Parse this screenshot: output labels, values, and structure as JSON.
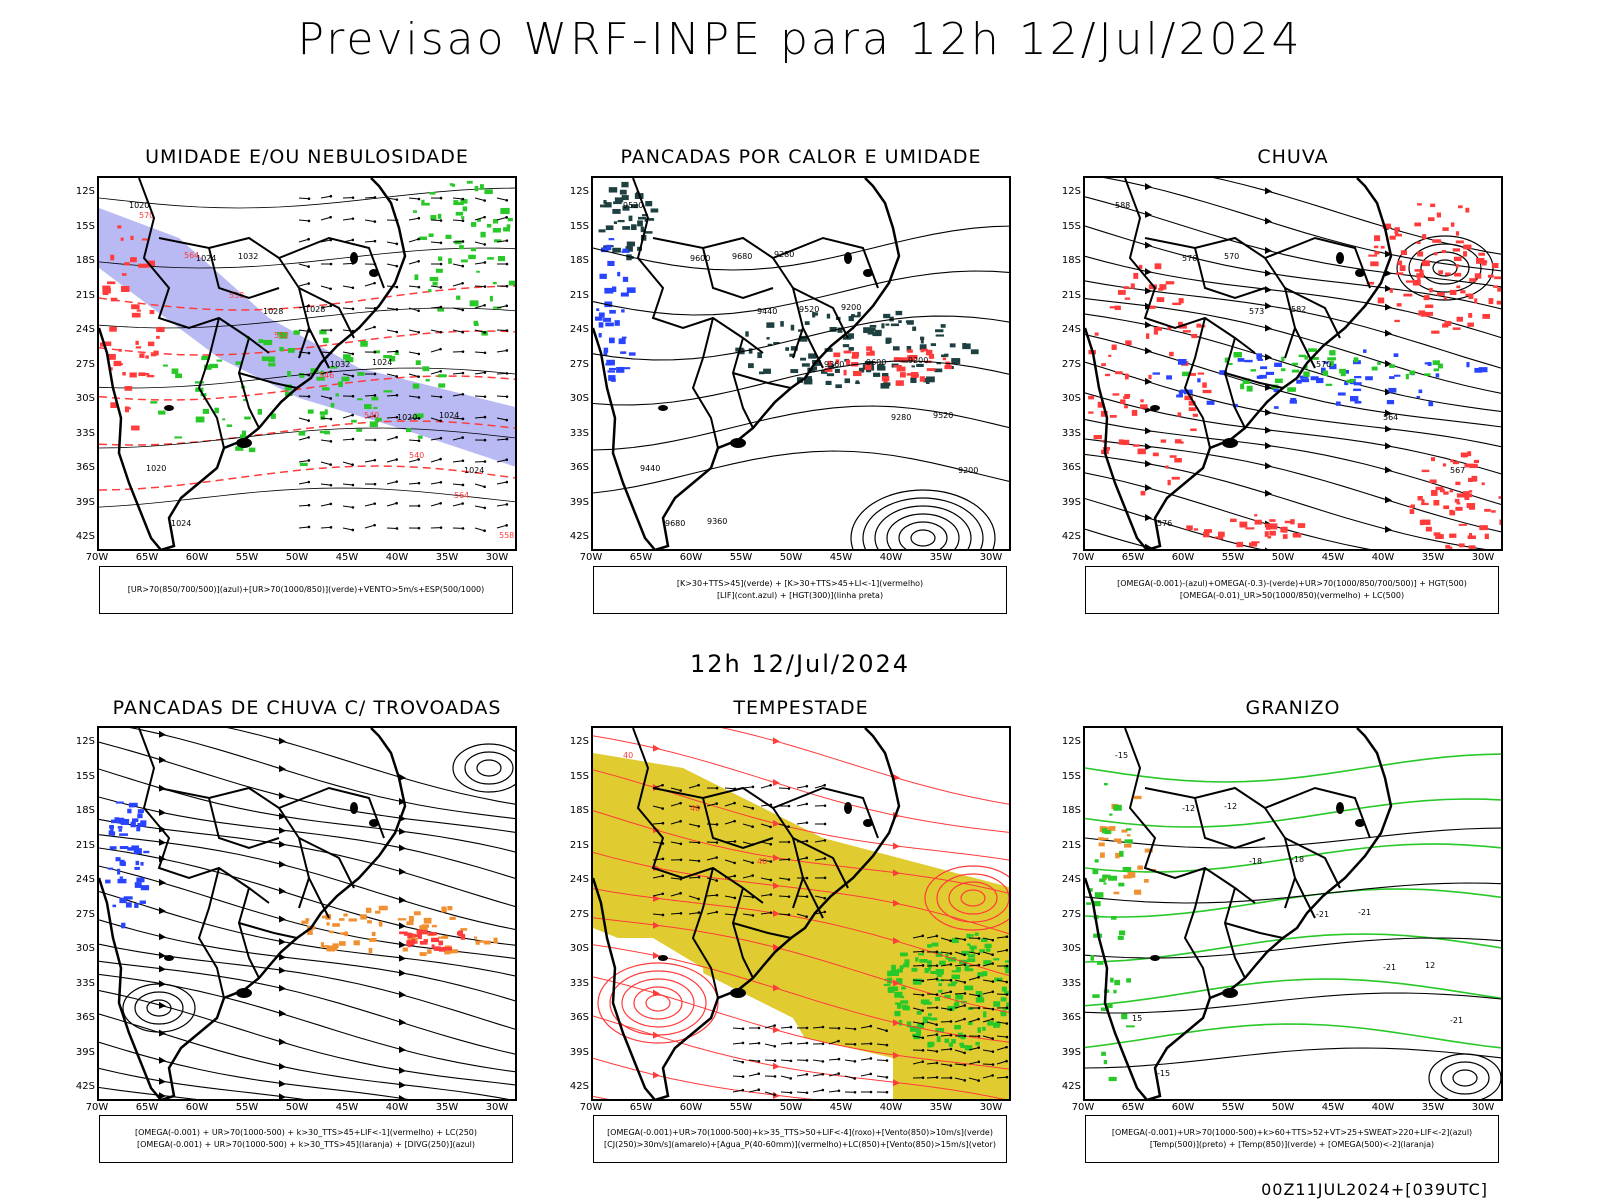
{
  "title": "Previsao WRF-INPE  para 12h 12/Jul/2024",
  "subtitle": "12h 12/Jul/2024",
  "footer": "00Z11JUL2024+[039UTC]",
  "lat_ticks": [
    "12S",
    "15S",
    "18S",
    "21S",
    "24S",
    "27S",
    "30S",
    "33S",
    "36S",
    "39S",
    "42S"
  ],
  "lon_ticks": [
    "70W",
    "65W",
    "60W",
    "55W",
    "50W",
    "45W",
    "40W",
    "35W",
    "30W"
  ],
  "colors": {
    "red": "#ff3b3b",
    "green": "#28c828",
    "blue": "#2844ff",
    "lavender": "#a8a8f0",
    "yellow": "#e0cc30",
    "orange": "#f09030",
    "dark_teal": "#1e4040"
  },
  "panels": [
    {
      "id": "p1",
      "title": "UMIDADE E/OU NEBULOSIDADE",
      "legend": [
        "[UR>70(850/700/500)](azul)+[UR>70(1000/850)](verde)+VENTO>5m/s+ESP(500/1000)"
      ],
      "labels": [
        "1020",
        "1024",
        "1028",
        "1032",
        "1020",
        "1024",
        "1024",
        "1032",
        "1028",
        "1024",
        "1024",
        "1020",
        "570",
        "564",
        "558",
        "552",
        "546",
        "540",
        "540",
        "564",
        "558",
        "552",
        "546",
        "540"
      ]
    },
    {
      "id": "p2",
      "title": "PANCADAS POR CALOR E UMIDADE",
      "legend": [
        "[K>30+TTS>45](verde) + [K>30+TTS>45+LI<-1](vermelho)",
        "[LIF](cont.azul) + [HGT(300)](linha preta)"
      ],
      "labels": [
        "9520",
        "9600",
        "9440",
        "9360",
        "9280",
        "9200",
        "9680",
        "9680",
        "9520",
        "9600",
        "9520",
        "9440",
        "9360",
        "9280",
        "9200",
        "9200"
      ]
    },
    {
      "id": "p3",
      "title": "CHUVA",
      "legend": [
        "[OMEGA(-0.001)-(azul)+OMEGA(-0.3)-(verde)+UR>70(1000/850/700/500)] + HGT(500)",
        "[OMEGA(-0.01)_UR>50(1000/850)(vermelho) + LC(500)"
      ],
      "labels": [
        "588",
        "576",
        "573",
        "570",
        "564",
        "567",
        "576",
        "570",
        "582"
      ]
    },
    {
      "id": "p4",
      "title": "PANCADAS DE CHUVA C/ TROVOADAS",
      "legend": [
        "[OMEGA(-0.001) + UR>70(1000-500) + k>30_TTS>45+LIF<-1](vermelho) + LC(250)",
        "[OMEGA(-0.001) + UR>70(1000-500) + k>30_TTS>45](laranja) + [DIVG(250)](azul)"
      ],
      "labels": []
    },
    {
      "id": "p5",
      "title": "TEMPESTADE",
      "legend": [
        "[OMEGA(-0.001)+UR>70(1000-500)+k>35_TTS>50+LIF<-4](roxo)+[Vento(850)>10m/s](verde)",
        "[CJ(250)>30m/s](amarelo)+[Agua_P(40-60mm)](vermelho)+LC(850)+[Vento(850)>15m/s](vetor)"
      ],
      "labels": [
        "40",
        "40",
        "40"
      ]
    },
    {
      "id": "p6",
      "title": "GRANIZO",
      "legend": [
        "[OMEGA(-0.001)+UR>70(1000-500)+k>60+TTS>52+VT>25+SWEAT>220+LIF<-2](azul)",
        "[Temp(500)](preto) + [Temp(850)](verde) + [OMEGA(500)<-2](laranja)"
      ],
      "labels": [
        "-15",
        "-12",
        "-18",
        "-21",
        "-21",
        "-21",
        "-15",
        "-12",
        "-18",
        "-21",
        "12",
        "15"
      ]
    }
  ]
}
